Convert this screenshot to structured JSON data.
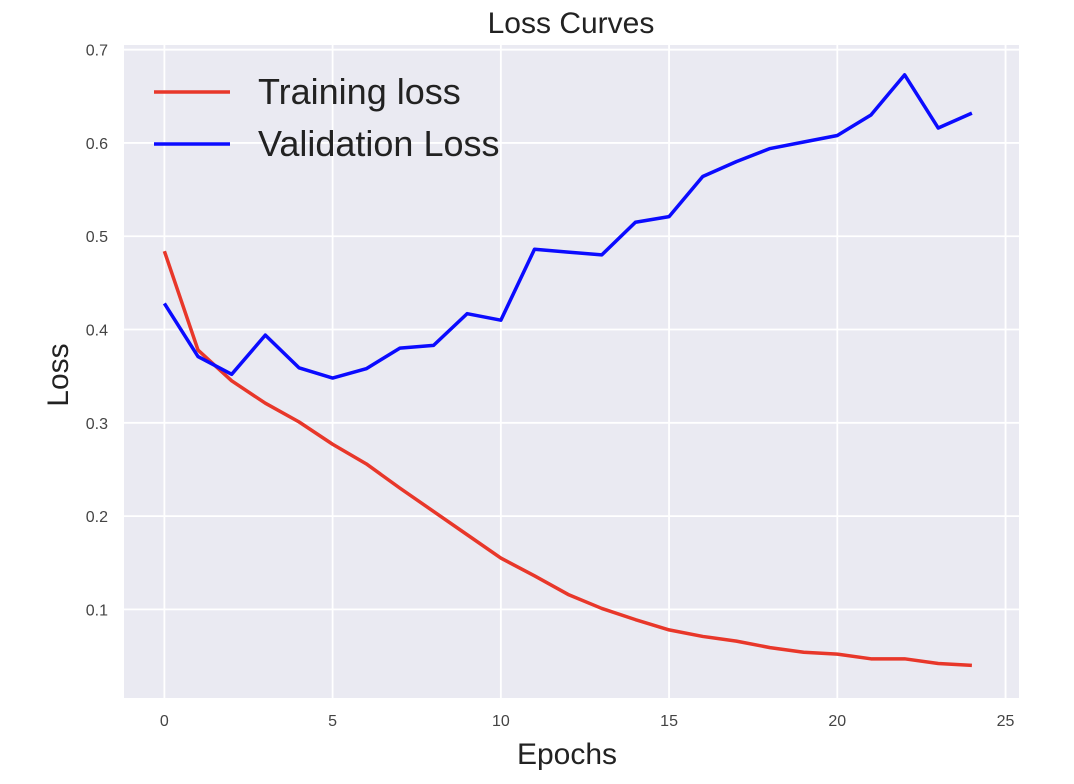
{
  "chart_data": {
    "type": "line",
    "title": "Loss Curves",
    "xlabel": "Epochs",
    "ylabel": "Loss",
    "xlim": [
      -1.2,
      25.4
    ],
    "ylim": [
      0.005,
      0.705
    ],
    "xticks": [
      0,
      5,
      10,
      15,
      20,
      25
    ],
    "yticks": [
      0.1,
      0.2,
      0.3,
      0.4,
      0.5,
      0.6,
      0.7
    ],
    "grid": true,
    "legend_position": "top-left",
    "background_color": "#eaeaf2",
    "grid_color": "#ffffff",
    "x": [
      0,
      1,
      2,
      3,
      4,
      5,
      6,
      7,
      8,
      9,
      10,
      11,
      12,
      13,
      14,
      15,
      16,
      17,
      18,
      19,
      20,
      21,
      22,
      23,
      24
    ],
    "series": [
      {
        "name": "Training loss",
        "color": "#e8372a",
        "values": [
          0.484,
          0.378,
          0.345,
          0.321,
          0.301,
          0.277,
          0.256,
          0.23,
          0.205,
          0.18,
          0.155,
          0.136,
          0.116,
          0.101,
          0.089,
          0.078,
          0.071,
          0.066,
          0.059,
          0.054,
          0.052,
          0.047,
          0.047,
          0.042,
          0.04
        ]
      },
      {
        "name": "Validation Loss",
        "color": "#0b0bff",
        "values": [
          0.428,
          0.371,
          0.352,
          0.394,
          0.359,
          0.348,
          0.358,
          0.38,
          0.383,
          0.417,
          0.41,
          0.486,
          0.483,
          0.48,
          0.515,
          0.521,
          0.564,
          0.58,
          0.594,
          0.601,
          0.608,
          0.63,
          0.673,
          0.616,
          0.632
        ]
      }
    ]
  }
}
